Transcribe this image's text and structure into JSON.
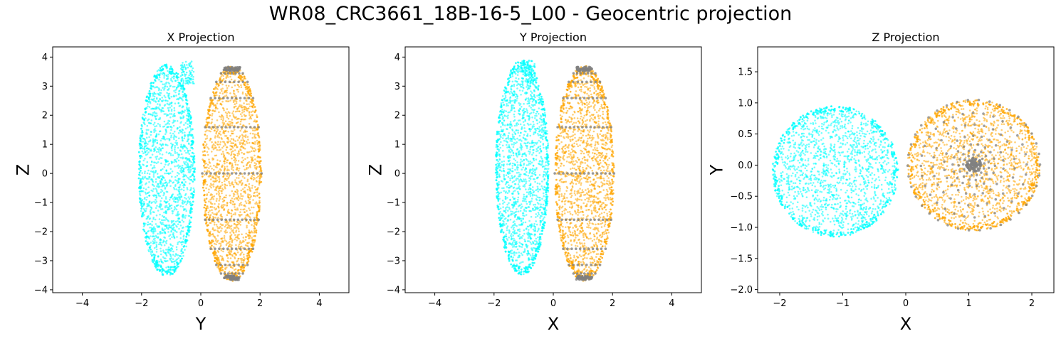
{
  "figure": {
    "title": "WR08_CRC3661_18B-16-5_L00 - Geocentric projection"
  },
  "colors": {
    "body_a": "#00ffff",
    "body_b": "#ffa500",
    "grid_points": "#808080",
    "frame": "#000000",
    "background": "#ffffff"
  },
  "chart_data": [
    {
      "type": "scatter",
      "title": "X Projection",
      "xlabel": "Y",
      "ylabel": "Z",
      "xlim": [
        -5.0,
        5.0
      ],
      "ylim": [
        -4.1,
        4.35
      ],
      "xticks": [
        -4,
        -2,
        0,
        2,
        4
      ],
      "yticks": [
        -4,
        -3,
        -2,
        -1,
        0,
        1,
        2,
        3,
        4
      ],
      "grid": false,
      "series": [
        {
          "color": "cyan",
          "shape": "ellipse",
          "center": [
            -1.15,
            0.1
          ],
          "semi_axes": [
            0.95,
            3.65
          ],
          "notch": [
            -0.45,
            3.85
          ]
        },
        {
          "color": "orange",
          "shape": "ellipse",
          "center": [
            1.05,
            0.0
          ],
          "semi_axes": [
            1.0,
            3.7
          ]
        },
        {
          "color": "gray",
          "shape": "latitude-rings",
          "center": [
            1.05,
            0.0
          ],
          "semi_axes": [
            1.0,
            3.7
          ]
        }
      ]
    },
    {
      "type": "scatter",
      "title": "Y Projection",
      "xlabel": "X",
      "ylabel": "Z",
      "xlim": [
        -5.0,
        5.0
      ],
      "ylim": [
        -4.1,
        4.35
      ],
      "xticks": [
        -4,
        -2,
        0,
        2,
        4
      ],
      "yticks": [
        -4,
        -3,
        -2,
        -1,
        0,
        1,
        2,
        3,
        4
      ],
      "grid": false,
      "series": [
        {
          "color": "cyan",
          "shape": "ellipse",
          "center": [
            -1.05,
            0.2
          ],
          "semi_axes": [
            0.9,
            3.7
          ],
          "notch": [
            -0.85,
            3.9
          ]
        },
        {
          "color": "orange",
          "shape": "ellipse",
          "center": [
            1.05,
            0.0
          ],
          "semi_axes": [
            1.0,
            3.7
          ]
        },
        {
          "color": "gray",
          "shape": "latitude-rings",
          "center": [
            1.05,
            0.0
          ],
          "semi_axes": [
            1.0,
            3.7
          ]
        }
      ]
    },
    {
      "type": "scatter",
      "title": "Z Projection",
      "xlabel": "X",
      "ylabel": "Y",
      "xlim": [
        -2.35,
        2.35
      ],
      "ylim": [
        -2.05,
        1.9
      ],
      "xticks": [
        -2,
        -1,
        0,
        1,
        2
      ],
      "yticks": [
        -2.0,
        -1.5,
        -1.0,
        -0.5,
        0.0,
        0.5,
        1.0,
        1.5
      ],
      "grid": false,
      "series": [
        {
          "color": "cyan",
          "shape": "ellipse",
          "center": [
            -1.12,
            -0.1
          ],
          "semi_axes": [
            1.0,
            1.05
          ]
        },
        {
          "color": "orange",
          "shape": "ellipse",
          "center": [
            1.08,
            0.0
          ],
          "semi_axes": [
            1.05,
            1.05
          ]
        },
        {
          "color": "gray",
          "shape": "polar-grid",
          "center": [
            1.08,
            0.0
          ],
          "semi_axes": [
            1.05,
            1.05
          ]
        }
      ]
    }
  ]
}
